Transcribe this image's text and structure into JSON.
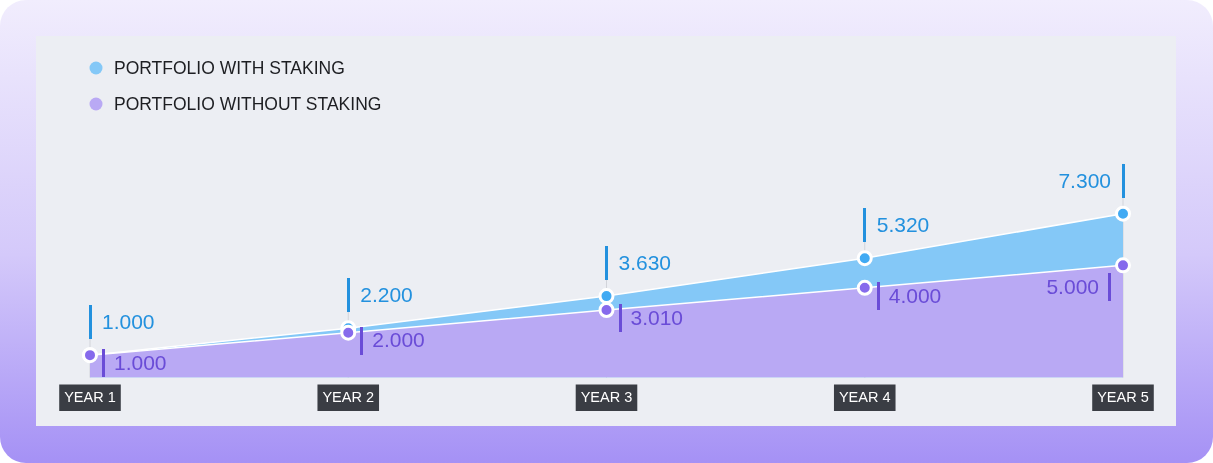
{
  "chart_data": {
    "type": "area",
    "categories": [
      "YEAR 1",
      "YEAR 2",
      "YEAR 3",
      "YEAR 4",
      "YEAR 5"
    ],
    "series": [
      {
        "name": "PORTFOLIO WITH STAKING",
        "color": "#84c8f7",
        "values": [
          1000,
          2200,
          3630,
          5320,
          7300
        ],
        "value_labels": [
          "1.000",
          "2.200",
          "3.630",
          "5.320",
          "7.300"
        ]
      },
      {
        "name": "PORTFOLIO WITHOUT STAKING",
        "color": "#b9a9f4",
        "values": [
          1000,
          2000,
          3010,
          4000,
          5000
        ],
        "value_labels": [
          "1.000",
          "2.000",
          "3.010",
          "4.000",
          "5.000"
        ]
      }
    ],
    "legend": "top left",
    "marker": "circle",
    "grid": "x",
    "tick_labels": "x"
  }
}
